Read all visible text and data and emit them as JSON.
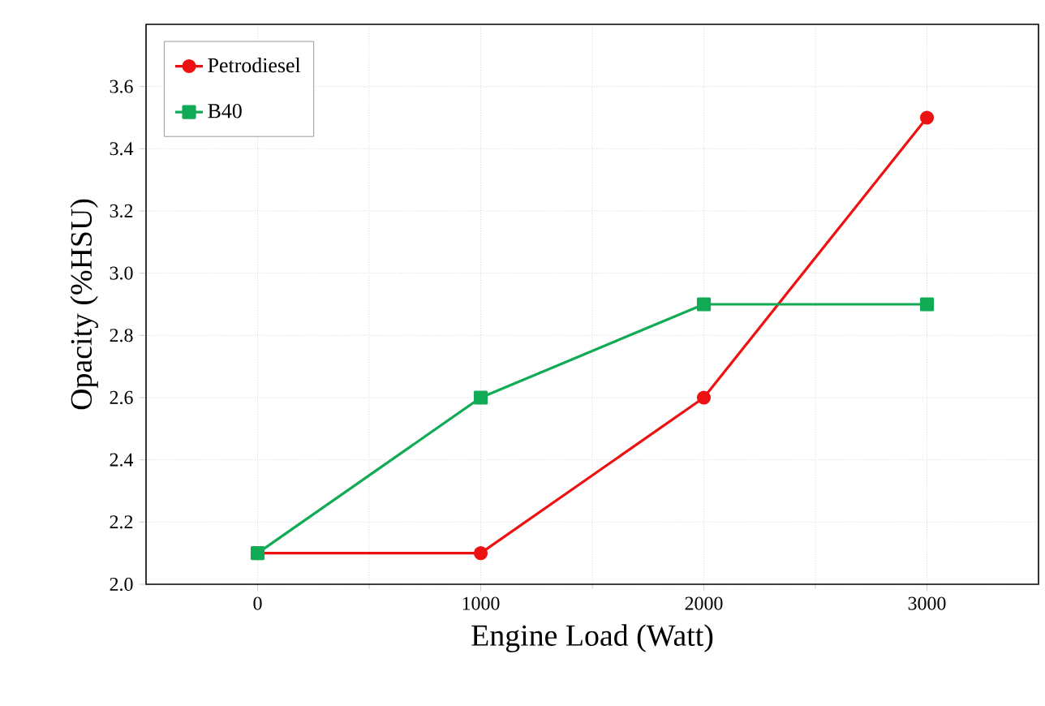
{
  "chart_data": {
    "type": "line",
    "xlabel": "Engine Load (Watt)",
    "ylabel": "Opacity (%HSU)",
    "x": [
      0,
      1000,
      2000,
      3000
    ],
    "series": [
      {
        "name": "Petrodiesel",
        "color": "#ee1111",
        "marker": "circle",
        "values": [
          2.1,
          2.1,
          2.6,
          3.5
        ]
      },
      {
        "name": "B40",
        "color": "#11aa55",
        "marker": "square",
        "values": [
          2.1,
          2.6,
          2.9,
          2.9
        ]
      }
    ],
    "xlim": [
      -500,
      3500
    ],
    "xticks": [
      0,
      1000,
      2000,
      3000
    ],
    "ylim": [
      2.0,
      3.8
    ],
    "yticks": [
      {
        "value": 2.0,
        "label": "2.0"
      },
      2.2,
      2.4,
      2.6,
      2.8,
      {
        "value": 3.0,
        "label": "3.0"
      },
      3.2,
      3.4,
      3.6
    ],
    "grid": true,
    "legend": "top left",
    "line_style": "solid"
  }
}
